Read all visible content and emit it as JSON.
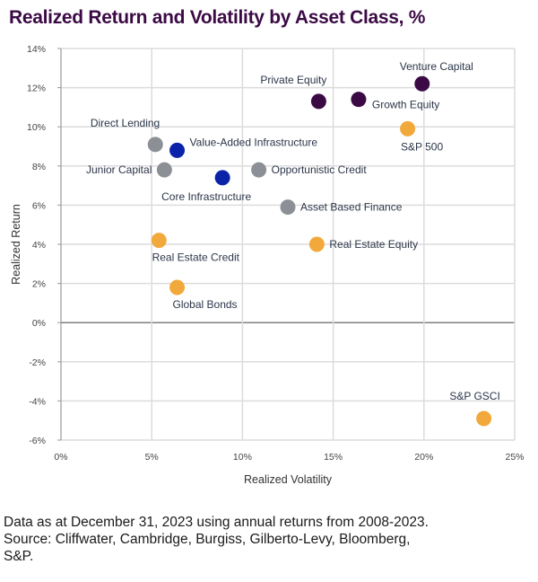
{
  "chart_data": {
    "type": "scatter",
    "title": "Realized Return and Volatility by Asset Class, %",
    "xlabel": "Realized Volatility",
    "ylabel": "Realized Return",
    "xlim": [
      0,
      25
    ],
    "ylim": [
      -6,
      14
    ],
    "x_ticks": [
      0,
      5,
      10,
      15,
      20,
      25
    ],
    "y_ticks": [
      -6,
      -4,
      -2,
      0,
      2,
      4,
      6,
      8,
      10,
      12,
      14
    ],
    "x_tick_labels": [
      "0%",
      "5%",
      "10%",
      "15%",
      "20%",
      "25%"
    ],
    "y_tick_labels": [
      "-6%",
      "-4%",
      "-2%",
      "0%",
      "2%",
      "4%",
      "6%",
      "8%",
      "10%",
      "12%",
      "14%"
    ],
    "grid": true,
    "legend": "none",
    "groups": {
      "private_equity": "#3b0a45",
      "infrastructure": "#0a23a8",
      "private_credit": "#8c9096",
      "public_and_real_estate": "#f2a93b"
    },
    "points": [
      {
        "label": "Private Equity",
        "x": 14.2,
        "y": 11.3,
        "group": "private_equity",
        "label_pos": "top-left"
      },
      {
        "label": "Growth Equity",
        "x": 16.4,
        "y": 11.4,
        "group": "private_equity",
        "label_pos": "right-below"
      },
      {
        "label": "Venture Capital",
        "x": 19.9,
        "y": 12.2,
        "group": "private_equity",
        "label_pos": "top"
      },
      {
        "label": "S&P 500",
        "x": 19.1,
        "y": 9.9,
        "group": "public_and_real_estate",
        "label_pos": "bottom"
      },
      {
        "label": "Direct Lending",
        "x": 5.2,
        "y": 9.1,
        "group": "private_credit",
        "label_pos": "top-left"
      },
      {
        "label": "Value-Added Infrastructure",
        "x": 6.4,
        "y": 8.8,
        "group": "infrastructure",
        "label_pos": "right-above"
      },
      {
        "label": "Junior Capital",
        "x": 5.7,
        "y": 7.8,
        "group": "private_credit",
        "label_pos": "left"
      },
      {
        "label": "Core Infrastructure",
        "x": 8.9,
        "y": 7.4,
        "group": "infrastructure",
        "label_pos": "bottom"
      },
      {
        "label": "Opportunistic Credit",
        "x": 10.9,
        "y": 7.8,
        "group": "private_credit",
        "label_pos": "right"
      },
      {
        "label": "Asset Based Finance",
        "x": 12.5,
        "y": 5.9,
        "group": "private_credit",
        "label_pos": "right"
      },
      {
        "label": "Real Estate Credit",
        "x": 5.4,
        "y": 4.2,
        "group": "public_and_real_estate",
        "label_pos": "bottom"
      },
      {
        "label": "Real Estate Equity",
        "x": 14.1,
        "y": 4.0,
        "group": "public_and_real_estate",
        "label_pos": "right"
      },
      {
        "label": "Global Bonds",
        "x": 6.4,
        "y": 1.8,
        "group": "public_and_real_estate",
        "label_pos": "bottom"
      },
      {
        "label": "S&P GSCI",
        "x": 23.3,
        "y": -4.9,
        "group": "public_and_real_estate",
        "label_pos": "top"
      }
    ]
  },
  "footnote": {
    "line1": "Data as at December 31, 2023 using annual returns from 2008-2023.",
    "line2": "Source: Cliffwater, Cambridge, Burgiss, Gilberto-Levy, Bloomberg,",
    "line3": "S&P."
  }
}
